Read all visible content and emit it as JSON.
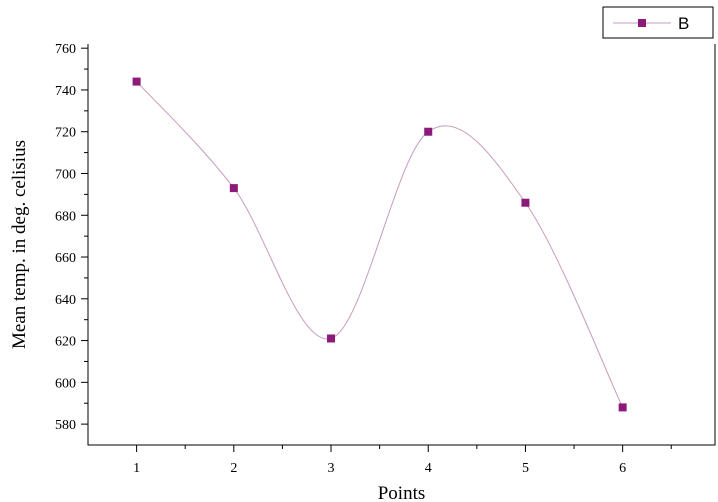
{
  "chart_data": {
    "type": "line",
    "title": "",
    "xlabel": "Points",
    "ylabel": "Mean temp. in deg. celisius",
    "xlim": [
      0.5,
      6.95
    ],
    "ylim": [
      570,
      762
    ],
    "x_ticks": [
      1,
      2,
      3,
      4,
      5,
      6
    ],
    "y_ticks": [
      580,
      600,
      620,
      640,
      660,
      680,
      700,
      720,
      740,
      760
    ],
    "grid": false,
    "legend_position": "top-right",
    "smoothed": true,
    "series": [
      {
        "name": "B",
        "color": "#8b1a7a",
        "line_color": "#c79bc0",
        "marker": "square",
        "x": [
          1,
          2,
          3,
          4,
          5,
          6
        ],
        "y": [
          744,
          693,
          621,
          720,
          686,
          588
        ]
      }
    ]
  }
}
